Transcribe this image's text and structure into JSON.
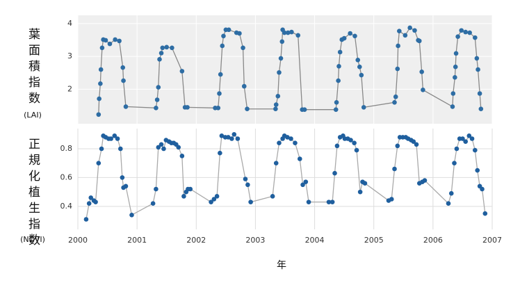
{
  "chart_data": [
    {
      "type": "line",
      "ylabel": "葉面積指数",
      "ylabel_unit": "(LAI)",
      "xlim": [
        2000,
        2007
      ],
      "ylim": [
        0.95,
        4.25
      ],
      "yticks": [
        2,
        3,
        4
      ],
      "panel_background": "#efefef",
      "grid_color": "#ffffff",
      "color": "#2e6da4",
      "line_color": "#888888",
      "x": [
        2000.35,
        2000.36,
        2000.38,
        2000.39,
        2000.41,
        2000.43,
        2000.47,
        2000.54,
        2000.63,
        2000.7,
        2000.76,
        2000.77,
        2000.81,
        2001.32,
        2001.34,
        2001.36,
        2001.38,
        2001.41,
        2001.43,
        2001.5,
        2001.59,
        2001.76,
        2001.81,
        2001.85,
        2002.32,
        2002.37,
        2002.39,
        2002.41,
        2002.44,
        2002.46,
        2002.5,
        2002.55,
        2002.68,
        2002.73,
        2002.79,
        2002.81,
        2002.86,
        2003.34,
        2003.35,
        2003.38,
        2003.4,
        2003.43,
        2003.45,
        2003.46,
        2003.49,
        2003.55,
        2003.61,
        2003.72,
        2003.79,
        2003.83,
        2004.36,
        2004.37,
        2004.4,
        2004.41,
        2004.43,
        2004.46,
        2004.5,
        2004.6,
        2004.68,
        2004.73,
        2004.76,
        2004.79,
        2004.83,
        2005.35,
        2005.37,
        2005.4,
        2005.41,
        2005.43,
        2005.53,
        2005.61,
        2005.69,
        2005.75,
        2005.77,
        2005.81,
        2005.83,
        2006.33,
        2006.34,
        2006.37,
        2006.38,
        2006.39,
        2006.42,
        2006.48,
        2006.55,
        2006.62,
        2006.71,
        2006.74,
        2006.76,
        2006.79,
        2006.81
      ],
      "values": [
        1.23,
        1.71,
        2.17,
        2.6,
        3.26,
        3.51,
        3.49,
        3.38,
        3.51,
        3.47,
        2.66,
        2.26,
        1.47,
        1.43,
        1.68,
        2.06,
        2.91,
        3.1,
        3.26,
        3.28,
        3.26,
        2.55,
        1.45,
        1.45,
        1.43,
        1.43,
        1.87,
        2.45,
        3.32,
        3.62,
        3.81,
        3.81,
        3.72,
        3.7,
        3.26,
        2.09,
        1.4,
        1.4,
        1.53,
        1.79,
        2.51,
        2.94,
        3.45,
        3.81,
        3.72,
        3.72,
        3.74,
        3.64,
        1.38,
        1.38,
        1.38,
        1.6,
        2.26,
        2.7,
        3.13,
        3.51,
        3.55,
        3.7,
        3.62,
        2.89,
        2.68,
        2.43,
        1.45,
        1.6,
        1.77,
        2.62,
        3.32,
        3.77,
        3.64,
        3.87,
        3.79,
        3.49,
        3.47,
        2.53,
        1.98,
        1.47,
        1.87,
        2.36,
        2.68,
        3.09,
        3.6,
        3.79,
        3.74,
        3.72,
        3.57,
        2.94,
        2.6,
        1.87,
        1.4
      ]
    },
    {
      "type": "line",
      "ylabel": "正規化植生指数",
      "ylabel_unit": "(NDVI)",
      "xlabel": "年",
      "xlim": [
        2000,
        2007
      ],
      "xticks": [
        2000,
        2001,
        2002,
        2003,
        2004,
        2005,
        2006,
        2007
      ],
      "ylim": [
        0.24,
        0.94
      ],
      "yticks": [
        0.4,
        0.6,
        0.8
      ],
      "panel_background": "#ffffff",
      "grid_color": "#dddddd",
      "color": "#1f5f9e",
      "line_color": "#aaaaaa",
      "x": [
        2000.14,
        2000.19,
        2000.22,
        2000.27,
        2000.3,
        2000.35,
        2000.4,
        2000.43,
        2000.47,
        2000.52,
        2000.56,
        2000.62,
        2000.67,
        2000.72,
        2000.75,
        2000.77,
        2000.81,
        2000.91,
        2001.27,
        2001.32,
        2001.36,
        2001.41,
        2001.45,
        2001.49,
        2001.54,
        2001.58,
        2001.62,
        2001.66,
        2001.7,
        2001.76,
        2001.79,
        2001.83,
        2001.86,
        2001.9,
        2002.25,
        2002.3,
        2002.35,
        2002.4,
        2002.43,
        2002.49,
        2002.54,
        2002.6,
        2002.64,
        2002.7,
        2002.83,
        2002.87,
        2002.92,
        2003.29,
        2003.35,
        2003.4,
        2003.46,
        2003.49,
        2003.54,
        2003.6,
        2003.67,
        2003.75,
        2003.8,
        2003.85,
        2003.9,
        2004.24,
        2004.3,
        2004.34,
        2004.38,
        2004.43,
        2004.48,
        2004.51,
        2004.56,
        2004.61,
        2004.67,
        2004.71,
        2004.77,
        2004.81,
        2004.85,
        2005.25,
        2005.3,
        2005.35,
        2005.4,
        2005.44,
        2005.49,
        2005.54,
        2005.58,
        2005.63,
        2005.67,
        2005.72,
        2005.77,
        2005.82,
        2005.86,
        2006.26,
        2006.31,
        2006.36,
        2006.4,
        2006.45,
        2006.5,
        2006.55,
        2006.61,
        2006.66,
        2006.71,
        2006.75,
        2006.79,
        2006.83,
        2006.88
      ],
      "values": [
        0.31,
        0.42,
        0.46,
        0.44,
        0.43,
        0.7,
        0.8,
        0.89,
        0.88,
        0.87,
        0.87,
        0.89,
        0.87,
        0.8,
        0.6,
        0.53,
        0.54,
        0.34,
        0.42,
        0.52,
        0.81,
        0.83,
        0.8,
        0.86,
        0.85,
        0.84,
        0.84,
        0.83,
        0.81,
        0.75,
        0.47,
        0.5,
        0.52,
        0.52,
        0.43,
        0.45,
        0.47,
        0.77,
        0.89,
        0.88,
        0.88,
        0.87,
        0.9,
        0.87,
        0.59,
        0.55,
        0.43,
        0.47,
        0.7,
        0.84,
        0.87,
        0.89,
        0.88,
        0.87,
        0.84,
        0.73,
        0.55,
        0.57,
        0.43,
        0.43,
        0.43,
        0.63,
        0.82,
        0.88,
        0.89,
        0.87,
        0.87,
        0.86,
        0.84,
        0.79,
        0.5,
        0.57,
        0.56,
        0.44,
        0.45,
        0.66,
        0.82,
        0.88,
        0.88,
        0.88,
        0.87,
        0.86,
        0.85,
        0.83,
        0.56,
        0.57,
        0.58,
        0.42,
        0.49,
        0.7,
        0.8,
        0.87,
        0.87,
        0.85,
        0.89,
        0.87,
        0.79,
        0.65,
        0.54,
        0.52,
        0.35
      ]
    }
  ]
}
